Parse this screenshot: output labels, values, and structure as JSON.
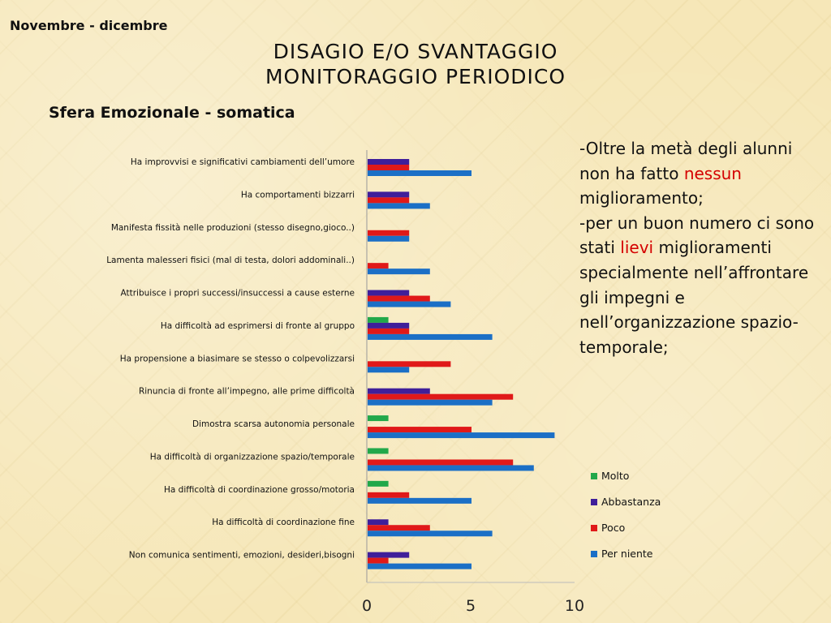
{
  "header": {
    "period": "Novembre - dicembre",
    "title_line1": "Disagio e/o svantaggio",
    "title_line2": "Monitoraggio periodico",
    "section": "Sfera Emozionale - somatica"
  },
  "commentary": {
    "p1_before": "-Oltre la metà degli alunni non ha fatto ",
    "p1_red": "nessun",
    "p1_after": " miglioramento;",
    "p2_before": "-per un buon numero ci sono stati ",
    "p2_red": "lievi",
    "p2_after": " miglioramenti specialmente nell’affrontare gli impegni e nell’organizzazione spazio-temporale;"
  },
  "colors": {
    "molto": "#22a84a",
    "abbastanza": "#3f1f9a",
    "poco": "#e01919",
    "per_niente": "#1b6fc6",
    "red_text": "#d40000"
  },
  "chart_data": {
    "type": "bar",
    "orientation": "horizontal",
    "categories": [
      "Ha improvvisi e significativi cambiamenti dell’umore",
      "Ha comportamenti bizzarri",
      "Manifesta fissità nelle produzioni (stesso disegno,gioco..)",
      "Lamenta malesseri fisici (mal di testa, dolori addominali..)",
      "Attribuisce i propri successi/insuccessi a cause esterne",
      "Ha difficoltà ad esprimersi di fronte al gruppo",
      "Ha propensione a biasimare se stesso o colpevolizzarsi",
      "Rinuncia di fronte all’impegno, alle prime difficoltà",
      "Dimostra scarsa autonomia personale",
      "Ha difficoltà di organizzazione spazio/temporale",
      "Ha difficoltà di coordinazione grosso/motoria",
      "Ha difficoltà di coordinazione fine",
      "Non comunica sentimenti, emozioni, desideri,bisogni"
    ],
    "series": [
      {
        "name": "Molto",
        "values": [
          0,
          0,
          0,
          0,
          0,
          1,
          0,
          0,
          1,
          1,
          1,
          0,
          0
        ]
      },
      {
        "name": "Abbastanza",
        "values": [
          2,
          2,
          0,
          0,
          2,
          2,
          0,
          3,
          0,
          0,
          0,
          1,
          2
        ]
      },
      {
        "name": "Poco",
        "values": [
          2,
          2,
          2,
          1,
          3,
          2,
          4,
          7,
          5,
          7,
          2,
          3,
          1
        ]
      },
      {
        "name": "Per niente",
        "values": [
          5,
          3,
          2,
          3,
          4,
          6,
          2,
          6,
          9,
          8,
          5,
          6,
          5
        ]
      }
    ],
    "xlim": [
      0,
      10
    ],
    "xticks": [
      "0",
      "5",
      "10"
    ],
    "legend_position": "right",
    "grid": false
  }
}
